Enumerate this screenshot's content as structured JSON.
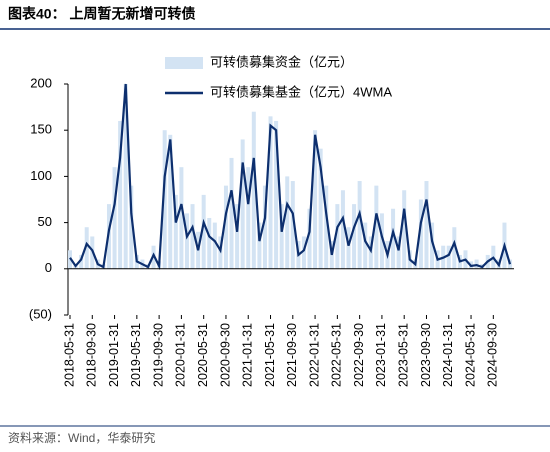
{
  "chart_data": {
    "type": "line",
    "title": "图表40：  上周暂无新增可转债",
    "source": "资料来源：Wind，华泰研究",
    "categories": [
      "2018-05-31",
      null,
      null,
      null,
      "2018-09-30",
      null,
      null,
      null,
      "2019-01-31",
      null,
      null,
      null,
      "2019-05-31",
      null,
      null,
      null,
      "2019-09-30",
      null,
      null,
      null,
      "2020-01-31",
      null,
      null,
      null,
      "2020-05-31",
      null,
      null,
      null,
      "2020-09-30",
      null,
      null,
      null,
      "2021-01-31",
      null,
      null,
      null,
      "2021-05-31",
      null,
      null,
      null,
      "2021-09-30",
      null,
      null,
      null,
      "2022-01-31",
      null,
      null,
      null,
      "2022-05-31",
      null,
      null,
      null,
      "2022-09-30",
      null,
      null,
      null,
      "2023-01-31",
      null,
      null,
      null,
      "2023-05-31",
      null,
      null,
      null,
      "2023-09-30",
      null,
      null,
      null,
      "2024-01-31",
      null,
      null,
      null,
      "2024-05-31",
      null,
      null,
      null,
      "2024-09-30",
      null,
      null,
      null
    ],
    "series": [
      {
        "name": "可转债募集资金（亿元）",
        "color": "#d3e3f3",
        "draw": "bar",
        "values": [
          20,
          5,
          15,
          45,
          35,
          10,
          5,
          70,
          110,
          160,
          200,
          90,
          15,
          10,
          5,
          25,
          8,
          150,
          145,
          80,
          110,
          60,
          70,
          40,
          80,
          55,
          50,
          35,
          90,
          120,
          70,
          140,
          110,
          170,
          50,
          90,
          165,
          160,
          70,
          100,
          95,
          30,
          35,
          65,
          150,
          130,
          90,
          30,
          70,
          85,
          45,
          70,
          95,
          50,
          35,
          90,
          60,
          30,
          65,
          35,
          85,
          20,
          10,
          75,
          95,
          50,
          20,
          25,
          25,
          45,
          15,
          20,
          8,
          10,
          5,
          15,
          25,
          10,
          50,
          10
        ]
      },
      {
        "name": "可转债募集基金（亿元）4WMA",
        "color": "#0d2f6e",
        "draw": "line",
        "values": [
          12,
          3,
          10,
          27,
          20,
          5,
          2,
          42,
          70,
          120,
          200,
          60,
          8,
          5,
          2,
          15,
          3,
          100,
          140,
          50,
          70,
          35,
          45,
          20,
          50,
          35,
          30,
          20,
          60,
          85,
          40,
          115,
          70,
          120,
          30,
          55,
          155,
          150,
          40,
          70,
          60,
          15,
          20,
          40,
          145,
          110,
          60,
          15,
          45,
          55,
          25,
          45,
          60,
          30,
          20,
          60,
          35,
          15,
          40,
          20,
          65,
          10,
          5,
          50,
          75,
          30,
          10,
          12,
          15,
          28,
          8,
          10,
          3,
          4,
          2,
          8,
          12,
          4,
          25,
          5
        ]
      }
    ],
    "ylim": [
      -50,
      200
    ],
    "yticks": [
      {
        "value": -50,
        "label": "(50)"
      },
      0,
      50,
      100,
      150,
      200
    ]
  }
}
